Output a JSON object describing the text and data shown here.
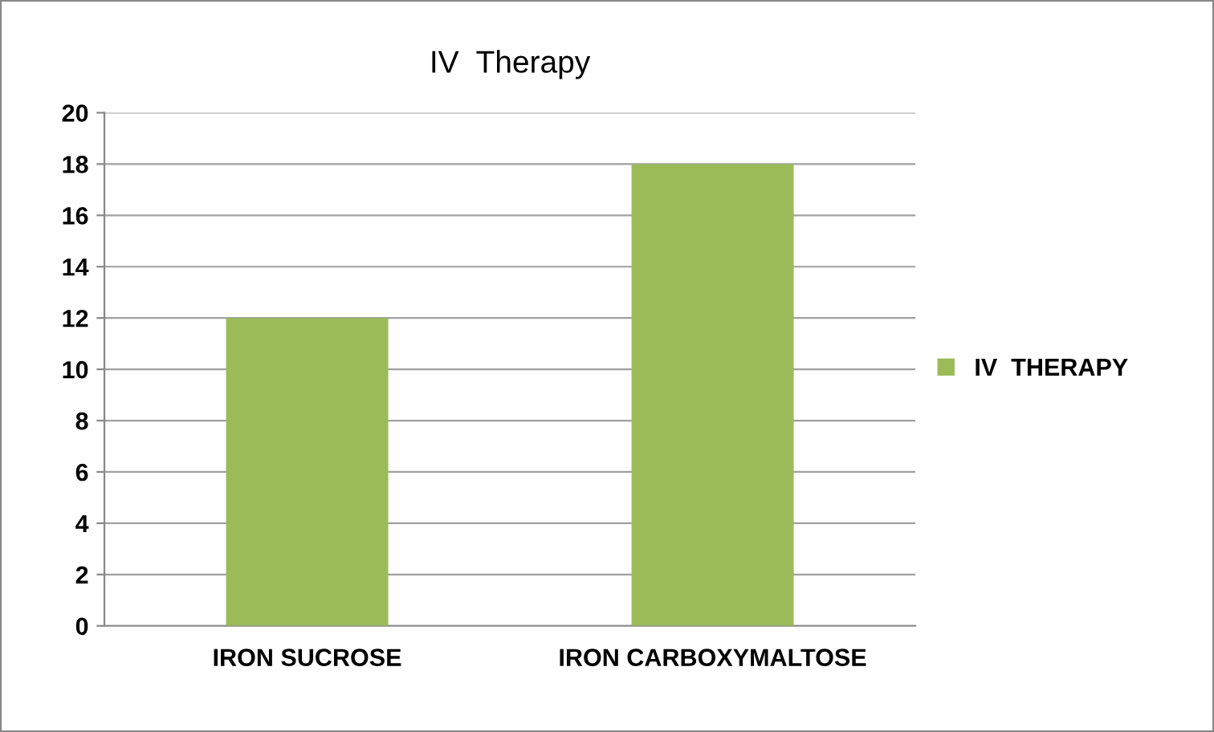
{
  "chart_data": {
    "type": "bar",
    "title": "IV  Therapy",
    "categories": [
      "IRON SUCROSE",
      "IRON CARBOXYMALTOSE"
    ],
    "series": [
      {
        "name": "IV  THERAPY",
        "color": "#9bbb59",
        "values": [
          12,
          18
        ]
      }
    ],
    "ylim": [
      0,
      20
    ],
    "yticks": [
      0,
      2,
      4,
      6,
      8,
      10,
      12,
      14,
      16,
      18,
      20
    ],
    "grid": "y",
    "legend": "right"
  }
}
